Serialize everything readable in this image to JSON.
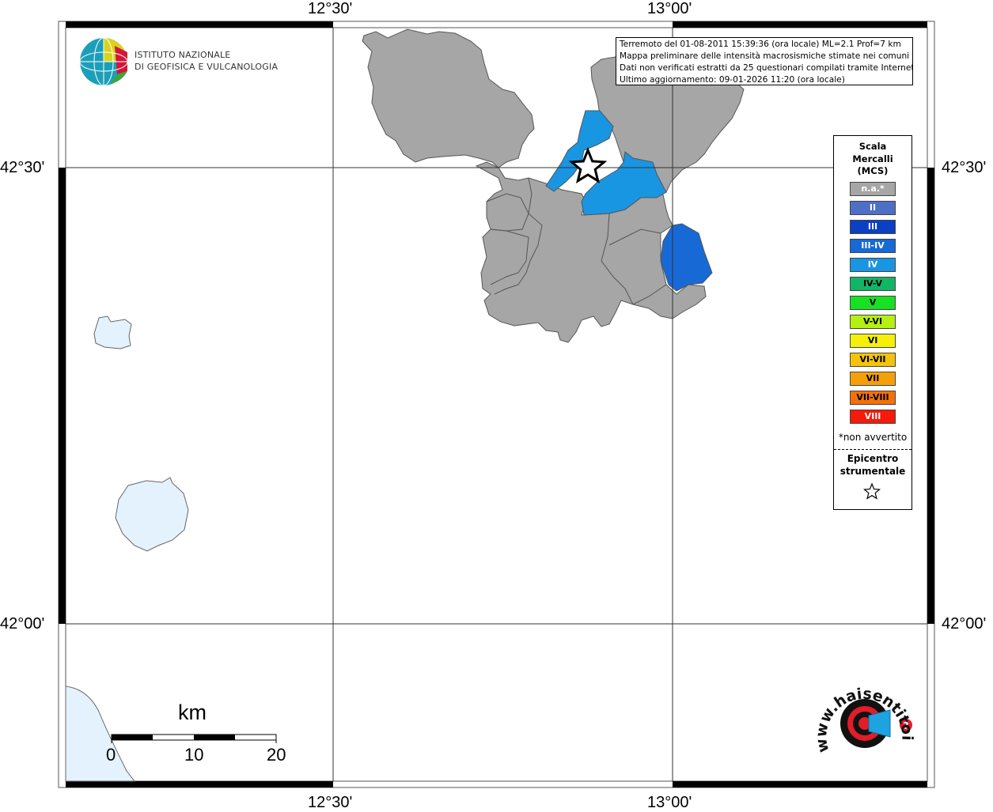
{
  "map": {
    "lon_labels": [
      "12°30'",
      "13°00'"
    ],
    "lat_labels": [
      "42°30'",
      "42°00'"
    ]
  },
  "logo": {
    "line1": "ISTITUTO NAZIONALE",
    "line2": "DI GEOFISICA E VULCANOLOGIA"
  },
  "info": {
    "line1": "Terremoto del 01-08-2011 15:39:36 (ora locale) ML=2.1 Prof=7 km",
    "line2": "Mappa preliminare delle intensità macrosismiche stimate nei comuni",
    "line3": "Dati non verificati estratti da 25 questionari compilati tramite Internet.",
    "line4": "Ultimo aggiornamento: 09-01-2026 11:20 (ora locale)"
  },
  "legend": {
    "title_lines": [
      "Scala",
      "Mercalli",
      "(MCS)"
    ],
    "items": [
      {
        "label": "n.a.*",
        "color": "#a6a6a6",
        "text_color": "#ffffff"
      },
      {
        "label": "II",
        "color": "#4e6fc6",
        "text_color": "#ffffff"
      },
      {
        "label": "III",
        "color": "#0b3fc4",
        "text_color": "#ffffff"
      },
      {
        "label": "III-IV",
        "color": "#1769d6",
        "text_color": "#ffffff"
      },
      {
        "label": "IV",
        "color": "#1896e2",
        "text_color": "#ffffff"
      },
      {
        "label": "IV-V",
        "color": "#12b565",
        "text_color": "#000000"
      },
      {
        "label": "V",
        "color": "#18e022",
        "text_color": "#000000"
      },
      {
        "label": "V-VI",
        "color": "#b6ef12",
        "text_color": "#000000"
      },
      {
        "label": "VI",
        "color": "#f5ef0a",
        "text_color": "#000000"
      },
      {
        "label": "VI-VII",
        "color": "#f5c40a",
        "text_color": "#000000"
      },
      {
        "label": "VII",
        "color": "#f5a00a",
        "text_color": "#000000"
      },
      {
        "label": "VII-VIII",
        "color": "#f5700a",
        "text_color": "#000000"
      },
      {
        "label": "VIII",
        "color": "#f51a0a",
        "text_color": "#ffffff"
      }
    ],
    "note": "*non avvertito",
    "epicenter_lines": [
      "Epicentro",
      "strumentale"
    ],
    "epicenter_icon": "star-icon"
  },
  "scale_bar": {
    "unit": "km",
    "ticks": [
      "0",
      "10",
      "20"
    ]
  },
  "watermark": {
    "text": "www.haisentitoilterremoto.it",
    "icon": "target-speaker-icon"
  },
  "colors": {
    "not_felt": "#a6a6a6",
    "intensity_IV": "#1896e2",
    "intensity_III_IV": "#1769d6",
    "water": "#e3f2fc"
  }
}
